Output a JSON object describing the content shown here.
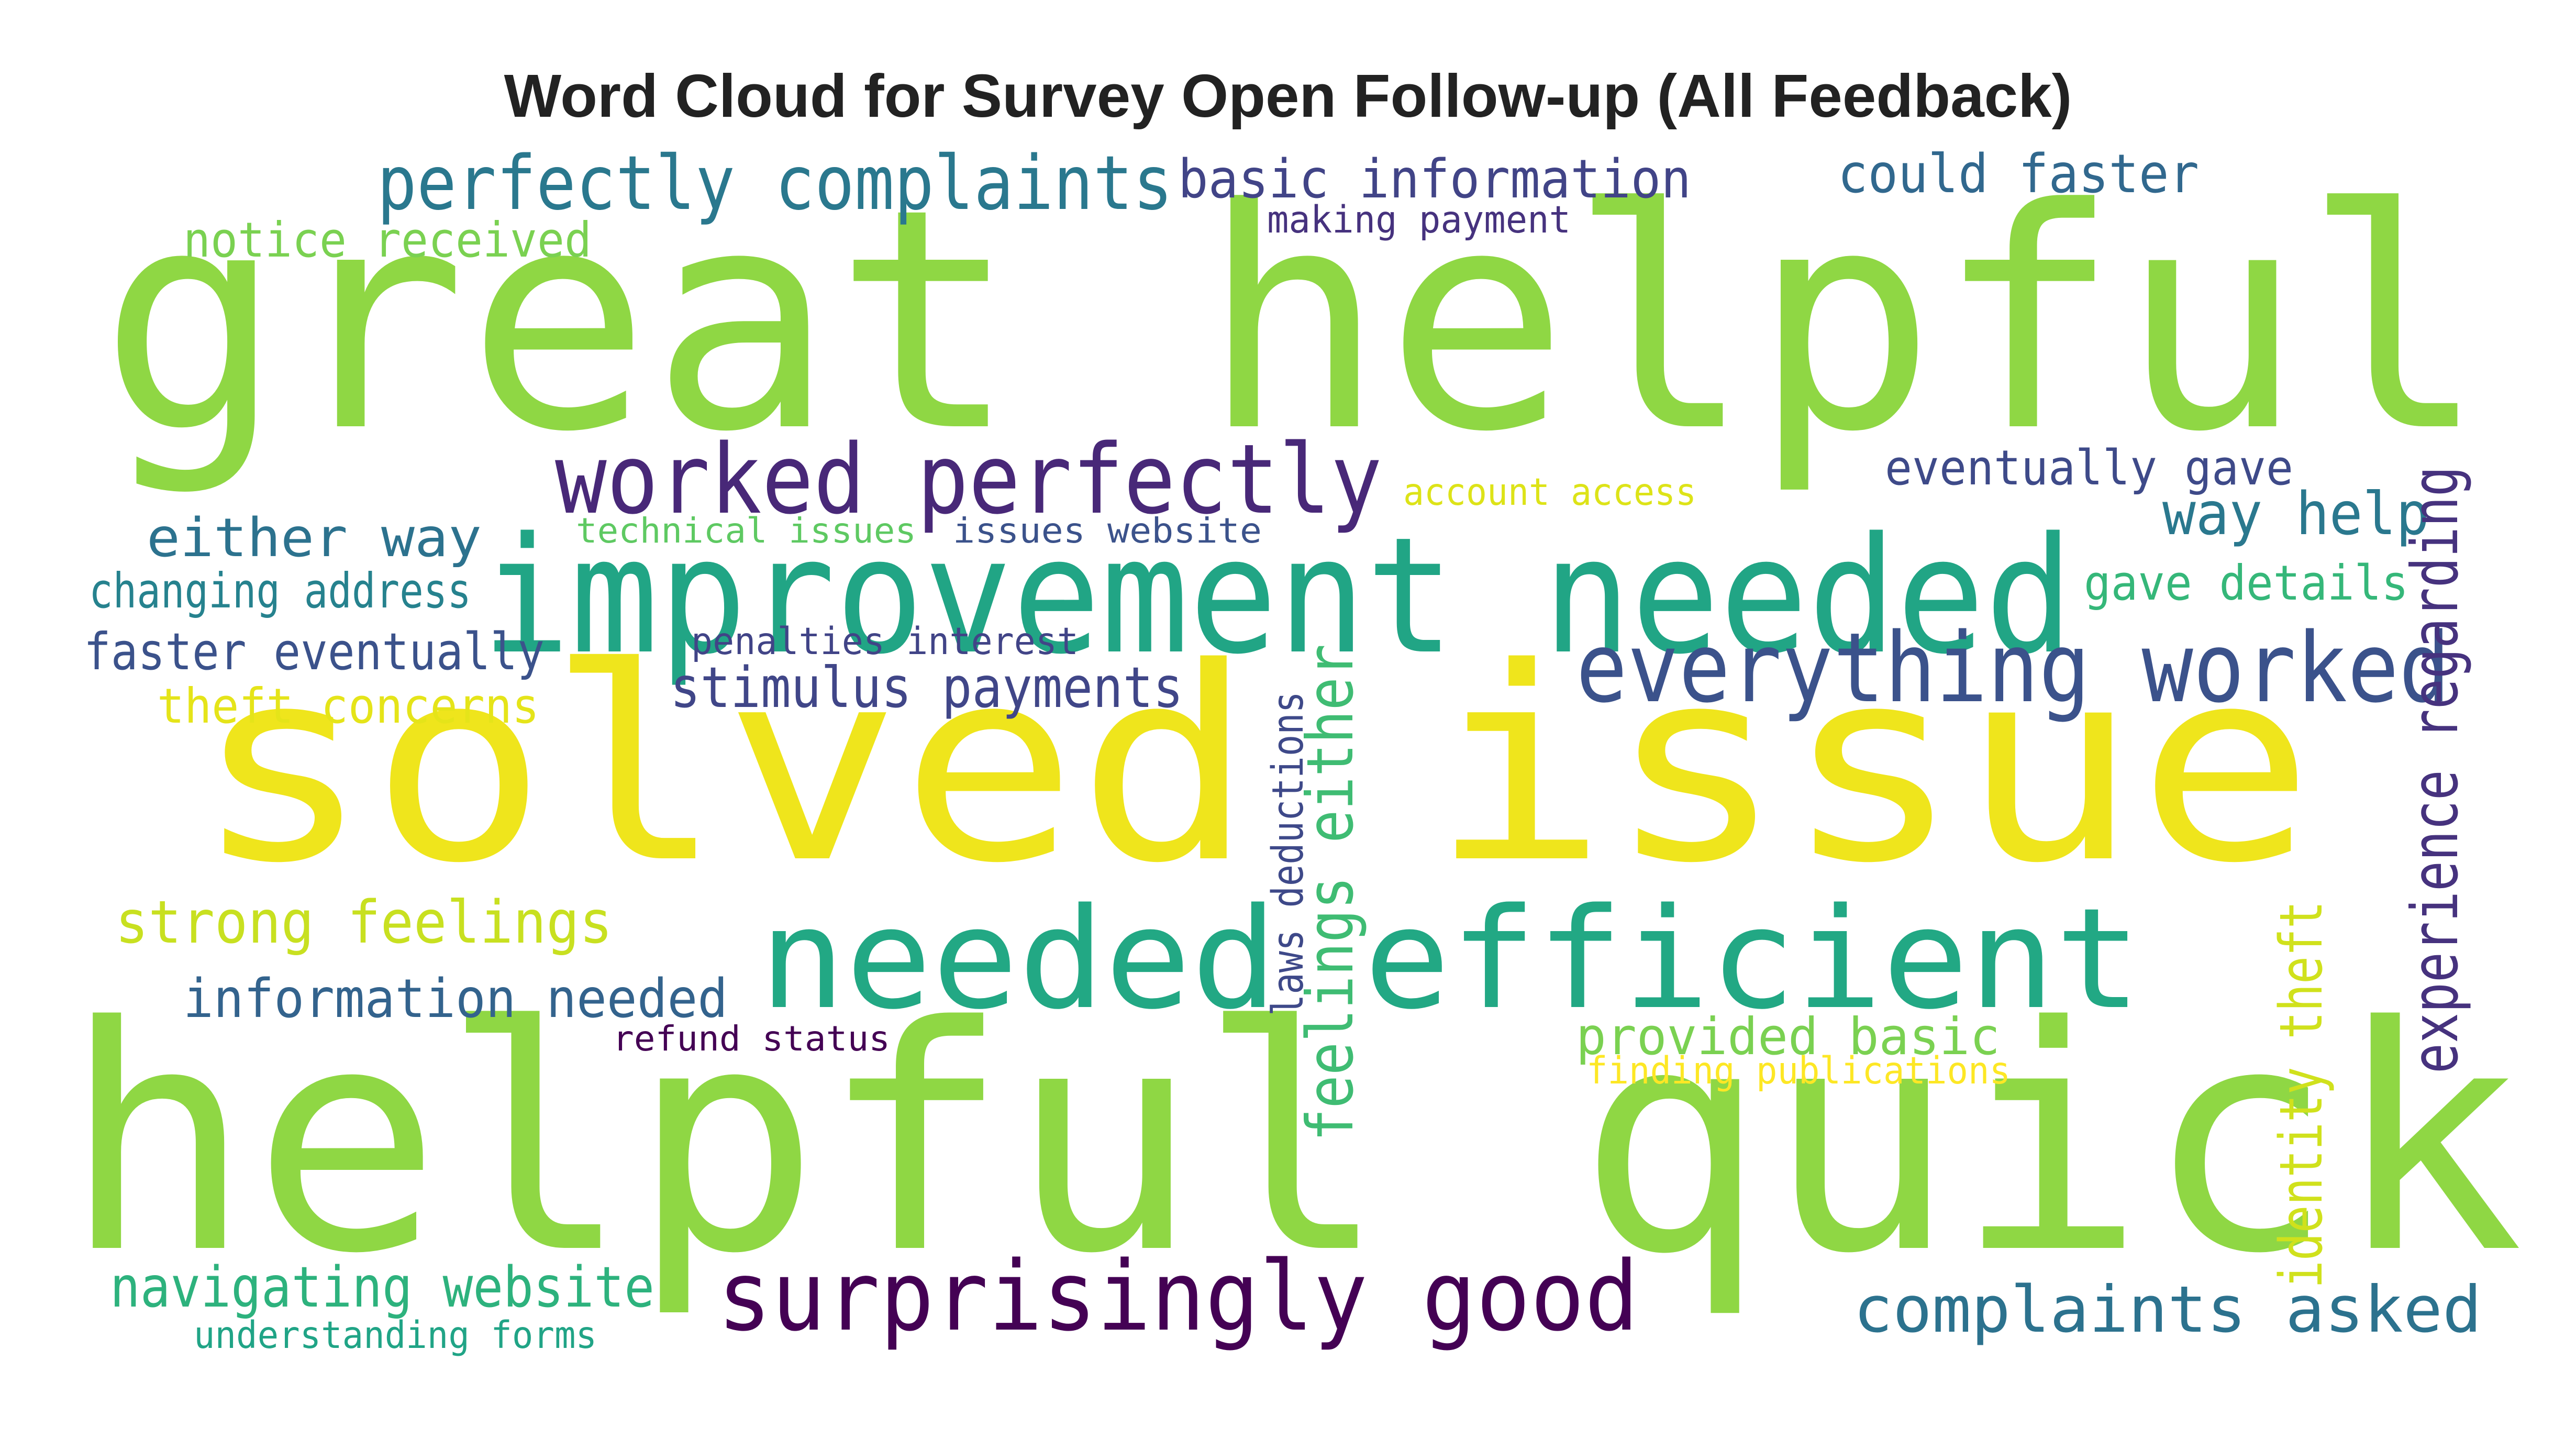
{
  "title": "Word Cloud for Survey Open Follow-up (All Feedback)",
  "colors": {
    "background": "#ffffff",
    "title": "#222222",
    "lime": "#8fd744",
    "yellow": "#efe51c",
    "green": "#2fb47c",
    "teal": "#21908d",
    "blue": "#3b528b",
    "indigo": "#46327e",
    "purple": "#440154"
  },
  "words": [
    {
      "text": "great helpful",
      "color": "#8fd744",
      "vertical": false
    },
    {
      "text": "solved issue",
      "color": "#efe51c",
      "vertical": false
    },
    {
      "text": "helpful quick",
      "color": "#8fd744",
      "vertical": false
    },
    {
      "text": "improvement needed",
      "color": "#21a585",
      "vertical": false
    },
    {
      "text": "needed efficient",
      "color": "#22a884",
      "vertical": false
    },
    {
      "text": "worked perfectly",
      "color": "#482878",
      "vertical": false
    },
    {
      "text": "everything worked",
      "color": "#3b528b",
      "vertical": false
    },
    {
      "text": "surprisingly good",
      "color": "#440154",
      "vertical": false
    },
    {
      "text": "perfectly complaints",
      "color": "#2a788e",
      "vertical": false
    },
    {
      "text": "basic information",
      "color": "#414487",
      "vertical": false
    },
    {
      "text": "could faster",
      "color": "#31688e",
      "vertical": false
    },
    {
      "text": "making payment",
      "color": "#46327e",
      "vertical": false
    },
    {
      "text": "notice received",
      "color": "#7ad151",
      "vertical": false
    },
    {
      "text": "either way",
      "color": "#2c728e",
      "vertical": false
    },
    {
      "text": "technical issues",
      "color": "#5ec962",
      "vertical": false
    },
    {
      "text": "issues website",
      "color": "#3b528b",
      "vertical": false
    },
    {
      "text": "account access",
      "color": "#dde318",
      "vertical": false
    },
    {
      "text": "eventually gave",
      "color": "#3e4a89",
      "vertical": false
    },
    {
      "text": "way help",
      "color": "#2a788e",
      "vertical": false
    },
    {
      "text": "changing address",
      "color": "#26828e",
      "vertical": false
    },
    {
      "text": "gave details",
      "color": "#35b779",
      "vertical": false
    },
    {
      "text": "penalties interest",
      "color": "#414487",
      "vertical": false
    },
    {
      "text": "faster eventually",
      "color": "#3b528b",
      "vertical": false
    },
    {
      "text": "theft concerns",
      "color": "#e5e419",
      "vertical": false
    },
    {
      "text": "stimulus payments",
      "color": "#404688",
      "vertical": false
    },
    {
      "text": "strong feelings",
      "color": "#c8e020",
      "vertical": false
    },
    {
      "text": "information needed",
      "color": "#33638d",
      "vertical": false
    },
    {
      "text": "refund status",
      "color": "#440154",
      "vertical": false
    },
    {
      "text": "provided basic",
      "color": "#7ad151",
      "vertical": false
    },
    {
      "text": "finding publications",
      "color": "#fde725",
      "vertical": false
    },
    {
      "text": "complaints asked",
      "color": "#2c728e",
      "vertical": false
    },
    {
      "text": "navigating website",
      "color": "#2db27d",
      "vertical": false
    },
    {
      "text": "understanding forms",
      "color": "#20a486",
      "vertical": false
    },
    {
      "text": "feelings either",
      "color": "#3fbc73",
      "vertical": true
    },
    {
      "text": "laws deductions",
      "color": "#3e4989",
      "vertical": true
    },
    {
      "text": "identity theft",
      "color": "#d0e11c",
      "vertical": true
    },
    {
      "text": "experience regarding",
      "color": "#46327e",
      "vertical": true
    }
  ]
}
